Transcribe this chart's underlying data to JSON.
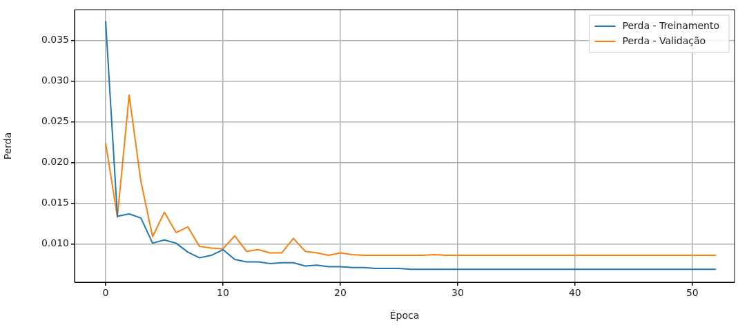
{
  "chart_data": {
    "type": "line",
    "xlabel": "Época",
    "ylabel": "Perda",
    "x": [
      0,
      1,
      2,
      3,
      4,
      5,
      6,
      7,
      8,
      9,
      10,
      11,
      12,
      13,
      14,
      15,
      16,
      17,
      18,
      19,
      20,
      21,
      22,
      23,
      24,
      25,
      26,
      27,
      28,
      29,
      30,
      31,
      32,
      33,
      34,
      35,
      36,
      37,
      38,
      39,
      40,
      41,
      42,
      43,
      44,
      45,
      46,
      47,
      48,
      49,
      50,
      51,
      52
    ],
    "series": [
      {
        "name": "Perda - Treinamento",
        "color": "#1f77b4",
        "values": [
          0.0374,
          0.0134,
          0.0137,
          0.0132,
          0.0101,
          0.0105,
          0.0101,
          0.009,
          0.0083,
          0.0086,
          0.0093,
          0.0081,
          0.0078,
          0.0078,
          0.0076,
          0.0077,
          0.0077,
          0.0073,
          0.0074,
          0.0072,
          0.0072,
          0.0071,
          0.0071,
          0.007,
          0.007,
          0.007,
          0.0069,
          0.0069,
          0.0069,
          0.0069,
          0.0069,
          0.0069,
          0.0069,
          0.0069,
          0.0069,
          0.0069,
          0.0069,
          0.0069,
          0.0069,
          0.0069,
          0.0069,
          0.0069,
          0.0069,
          0.0069,
          0.0069,
          0.0069,
          0.0069,
          0.0069,
          0.0069,
          0.0069,
          0.0069,
          0.0069,
          0.0069
        ]
      },
      {
        "name": "Perda - Validação",
        "color": "#ff7f0e",
        "values": [
          0.0224,
          0.0133,
          0.0283,
          0.0177,
          0.0109,
          0.0139,
          0.0114,
          0.0121,
          0.0097,
          0.0095,
          0.0094,
          0.011,
          0.0091,
          0.0093,
          0.0089,
          0.0089,
          0.0107,
          0.0091,
          0.0089,
          0.0086,
          0.0089,
          0.0087,
          0.0086,
          0.0086,
          0.0086,
          0.0086,
          0.0086,
          0.0086,
          0.0087,
          0.0086,
          0.0086,
          0.0086,
          0.0086,
          0.0086,
          0.0086,
          0.0086,
          0.0086,
          0.0086,
          0.0086,
          0.0086,
          0.0086,
          0.0086,
          0.0086,
          0.0086,
          0.0086,
          0.0086,
          0.0086,
          0.0086,
          0.0086,
          0.0086,
          0.0086,
          0.0086,
          0.0086
        ]
      }
    ],
    "xlim": [
      -2.65,
      53.6
    ],
    "xticks": [
      0,
      10,
      20,
      30,
      40,
      50
    ],
    "ylim": [
      0.0053,
      0.0388
    ],
    "yticks": [
      {
        "value": 0.01,
        "label": "0.010"
      },
      0.015,
      {
        "value": 0.02,
        "label": "0.020"
      },
      0.025,
      {
        "value": 0.03,
        "label": "0.030"
      },
      0.035
    ],
    "grid": true,
    "legend": "top right",
    "marker": "none",
    "line_style": "solid"
  }
}
